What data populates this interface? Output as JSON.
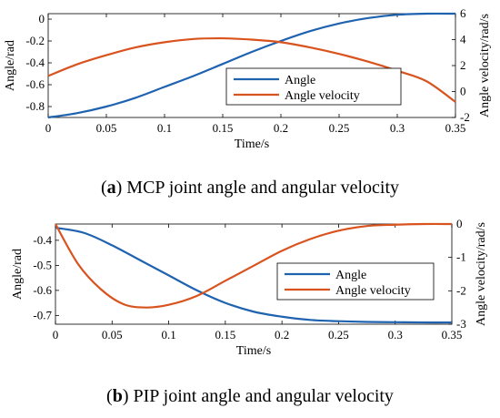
{
  "chart_data": [
    {
      "type": "line",
      "caption_label": "a",
      "caption_text": "MCP joint angle and angular velocity",
      "xlabel": "Time/s",
      "ylabel_left": "Angle/rad",
      "ylabel_right": "Angle velocity/rad/s",
      "xlim": [
        0,
        0.35
      ],
      "ylim_left": [
        -0.9,
        0.05
      ],
      "ylim_right": [
        -2,
        6
      ],
      "xticks": [
        "0",
        "0.05",
        "0.1",
        "0.15",
        "0.2",
        "0.25",
        "0.3",
        "0.35"
      ],
      "yticks_left": [
        "0",
        "-0.2",
        "-0.4",
        "-0.6",
        "-0.8"
      ],
      "yticks_right": [
        "6",
        "4",
        "2",
        "0",
        "-2"
      ],
      "legend_position": "lower-right",
      "series": [
        {
          "name": "Angle",
          "axis": "left",
          "color": "#1f63b0",
          "x": [
            0,
            0.025,
            0.05,
            0.075,
            0.1,
            0.125,
            0.15,
            0.175,
            0.2,
            0.225,
            0.25,
            0.275,
            0.3,
            0.325,
            0.35
          ],
          "y": [
            -0.9,
            -0.86,
            -0.8,
            -0.72,
            -0.62,
            -0.52,
            -0.41,
            -0.3,
            -0.2,
            -0.11,
            -0.04,
            0.01,
            0.04,
            0.05,
            0.05
          ]
        },
        {
          "name": "Angle velocity",
          "axis": "right",
          "color": "#d9531e",
          "x": [
            0,
            0.025,
            0.05,
            0.075,
            0.1,
            0.125,
            0.15,
            0.175,
            0.2,
            0.225,
            0.25,
            0.275,
            0.3,
            0.325,
            0.35
          ],
          "y": [
            1.2,
            2.1,
            2.8,
            3.4,
            3.8,
            4.05,
            4.1,
            4.0,
            3.8,
            3.4,
            2.9,
            2.3,
            1.6,
            0.8,
            -0.8
          ]
        }
      ]
    },
    {
      "type": "line",
      "caption_label": "b",
      "caption_text": "PIP joint angle and angular velocity",
      "xlabel": "Time/s",
      "ylabel_left": "Angle/rad",
      "ylabel_right": "Angle velocity/rad/s",
      "xlim": [
        0,
        0.35
      ],
      "ylim_left": [
        -0.735,
        -0.335
      ],
      "ylim_right": [
        -3,
        0
      ],
      "xticks": [
        "0",
        "0.05",
        "0.1",
        "0.15",
        "0.2",
        "0.25",
        "0.3",
        "0.35"
      ],
      "yticks_left": [
        "-0.4",
        "-0.5",
        "-0.6",
        "-0.7"
      ],
      "yticks_right": [
        "0",
        "-1",
        "-2",
        "-3"
      ],
      "legend_position": "center-right",
      "series": [
        {
          "name": "Angle",
          "axis": "left",
          "color": "#1f63b0",
          "x": [
            0,
            0.025,
            0.05,
            0.075,
            0.1,
            0.125,
            0.15,
            0.175,
            0.2,
            0.225,
            0.25,
            0.275,
            0.3,
            0.325,
            0.35
          ],
          "y": [
            -0.35,
            -0.37,
            -0.42,
            -0.48,
            -0.54,
            -0.6,
            -0.65,
            -0.685,
            -0.705,
            -0.718,
            -0.723,
            -0.726,
            -0.727,
            -0.728,
            -0.728
          ]
        },
        {
          "name": "Angle velocity",
          "axis": "right",
          "color": "#d9531e",
          "x": [
            0,
            0.02,
            0.04,
            0.06,
            0.08,
            0.1,
            0.125,
            0.15,
            0.175,
            0.2,
            0.225,
            0.25,
            0.275,
            0.3,
            0.325,
            0.35
          ],
          "y": [
            0,
            -1.2,
            -1.95,
            -2.4,
            -2.5,
            -2.42,
            -2.15,
            -1.7,
            -1.25,
            -0.8,
            -0.45,
            -0.2,
            -0.06,
            -0.02,
            0,
            0
          ]
        }
      ]
    }
  ]
}
